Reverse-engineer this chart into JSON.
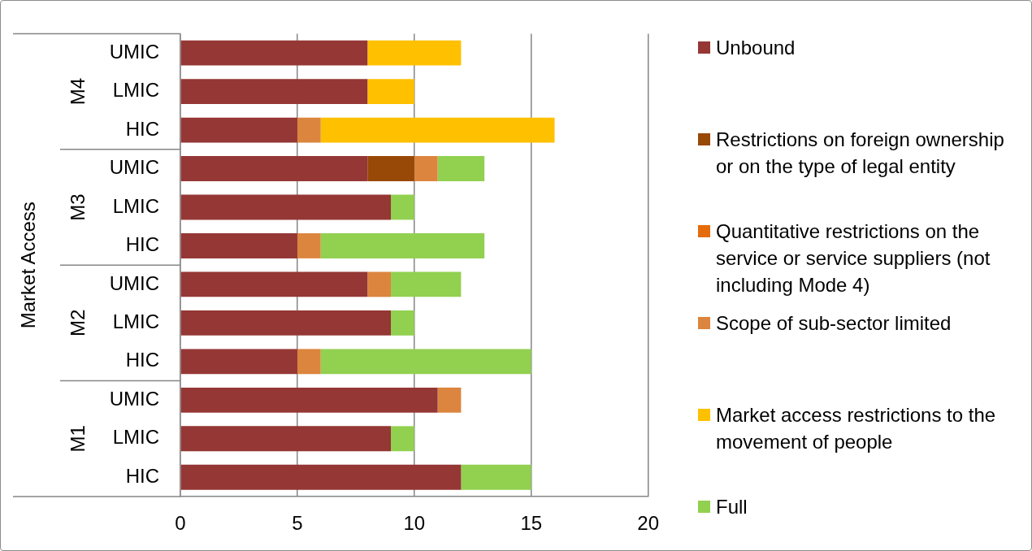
{
  "chart_data": {
    "type": "bar",
    "orientation": "horizontal",
    "stacked": true,
    "categories": [
      "UMIC",
      "LMIC",
      "HIC",
      "UMIC",
      "LMIC",
      "HIC",
      "UMIC",
      "LMIC",
      "HIC",
      "UMIC",
      "LMIC",
      "HIC"
    ],
    "ylabel": "Market Access",
    "annotations": [
      "M4",
      "M3",
      "M2",
      "M1"
    ],
    "series": [
      {
        "name": "Unbound",
        "color": "#953735",
        "values": [
          8,
          8,
          5,
          8,
          9,
          5,
          8,
          9,
          5,
          11,
          9,
          12
        ]
      },
      {
        "name": "Restrictions on foreign ownership or on the type of legal entity",
        "color": "#984807",
        "values": [
          null,
          null,
          null,
          2,
          null,
          null,
          null,
          null,
          null,
          null,
          null,
          null
        ]
      },
      {
        "name": "Quantitative restrictions on the service or service suppliers (not including Mode 4)",
        "color": "#e46c0a",
        "values": [
          null,
          null,
          null,
          null,
          null,
          null,
          null,
          null,
          null,
          null,
          null,
          null
        ]
      },
      {
        "name": "Scope of sub-sector limited",
        "color": "#dc853e",
        "values": [
          null,
          null,
          1,
          1,
          null,
          1,
          1,
          null,
          1,
          1,
          null,
          null
        ]
      },
      {
        "name": "Market access restrictions to the movement of people",
        "color": "#ffc000",
        "values": [
          4,
          2,
          10,
          null,
          null,
          null,
          null,
          null,
          null,
          null,
          null,
          null
        ]
      },
      {
        "name": "Full",
        "color": "#92d050",
        "values": [
          null,
          null,
          null,
          2,
          1,
          7,
          3,
          1,
          9,
          null,
          1,
          3
        ]
      }
    ],
    "xlim": [
      0,
      20
    ],
    "xticks": [
      0,
      5,
      10,
      15,
      20
    ],
    "grid": "x",
    "legend": "right"
  }
}
